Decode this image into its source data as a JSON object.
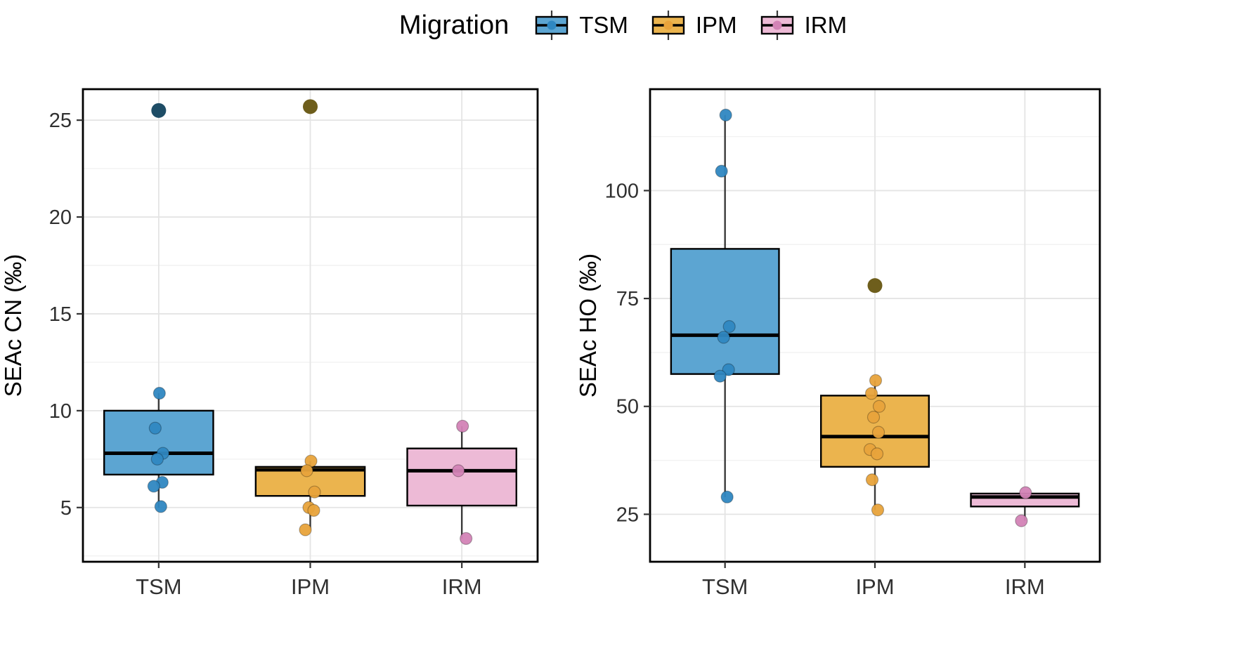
{
  "legend": {
    "title": "Migration",
    "items": [
      {
        "label": "TSM",
        "box_fill": "#5CA5D2",
        "point_color": "#2F87C1"
      },
      {
        "label": "IPM",
        "box_fill": "#EBB44E",
        "point_color": "#E8A33B"
      },
      {
        "label": "IRM",
        "box_fill": "#EDBAD6",
        "point_color": "#D383B6"
      }
    ]
  },
  "chart_data": [
    {
      "type": "boxplot",
      "title": "",
      "ylabel": "SEAc CN (‰)",
      "xlabel": "",
      "categories": [
        "TSM",
        "IPM",
        "IRM"
      ],
      "ylim": [
        2.2,
        26.6
      ],
      "yticks": [
        5,
        10,
        15,
        20,
        25
      ],
      "grid": true,
      "legend_position": "top",
      "groups": [
        {
          "name": "TSM",
          "box_fill": "#5CA5D2",
          "point_color": "#2F87C1",
          "outlier_color": "#1E4D66",
          "q1": 6.7,
          "median": 7.8,
          "q3": 10.0,
          "whisker_low": 5.0,
          "whisker_high": 10.9,
          "points": [
            10.9,
            9.1,
            7.8,
            7.5,
            6.3,
            6.1,
            5.05
          ],
          "outliers": [
            25.5
          ]
        },
        {
          "name": "IPM",
          "box_fill": "#EBB44E",
          "point_color": "#E8A33B",
          "outlier_color": "#6E5E1C",
          "q1": 5.6,
          "median": 6.95,
          "q3": 7.1,
          "whisker_low": 3.85,
          "whisker_high": 7.4,
          "points": [
            7.4,
            6.9,
            5.8,
            5.0,
            4.85,
            3.85
          ],
          "outliers": [
            25.7
          ]
        },
        {
          "name": "IRM",
          "box_fill": "#EDBAD6",
          "point_color": "#D383B6",
          "outlier_color": "#B0519A",
          "q1": 5.1,
          "median": 6.9,
          "q3": 8.05,
          "whisker_low": 3.4,
          "whisker_high": 9.2,
          "points": [
            9.2,
            6.9,
            3.4
          ],
          "outliers": []
        }
      ]
    },
    {
      "type": "boxplot",
      "title": "",
      "ylabel": "SEAc HO (‰)",
      "xlabel": "",
      "categories": [
        "TSM",
        "IPM",
        "IRM"
      ],
      "ylim": [
        14,
        123.5
      ],
      "yticks": [
        25,
        50,
        75,
        100
      ],
      "grid": true,
      "legend_position": "top",
      "groups": [
        {
          "name": "TSM",
          "box_fill": "#5CA5D2",
          "point_color": "#2F87C1",
          "outlier_color": "#1E4D66",
          "q1": 57.5,
          "median": 66.5,
          "q3": 86.5,
          "whisker_low": 29,
          "whisker_high": 117.5,
          "points": [
            117.5,
            104.5,
            68.5,
            66,
            58.5,
            57,
            29
          ],
          "outliers": []
        },
        {
          "name": "IPM",
          "box_fill": "#EBB44E",
          "point_color": "#E8A33B",
          "outlier_color": "#6E5E1C",
          "q1": 36,
          "median": 43,
          "q3": 52.5,
          "whisker_low": 26,
          "whisker_high": 56,
          "points": [
            56,
            53,
            50,
            47.5,
            44,
            40,
            39,
            33,
            26
          ],
          "outliers": [
            78
          ]
        },
        {
          "name": "IRM",
          "box_fill": "#EDBAD6",
          "point_color": "#D383B6",
          "outlier_color": "#B0519A",
          "q1": 26.8,
          "median": 29,
          "q3": 29.8,
          "whisker_low": 23.5,
          "whisker_high": 30,
          "points": [
            30,
            23.5
          ],
          "outliers": []
        }
      ]
    }
  ],
  "colors": {
    "panel_border": "#000000",
    "grid_major": "#E4E4E4",
    "grid_minor": "#F2F2F2",
    "axis_text": "#303030",
    "whisker": "#3A3A3A"
  }
}
